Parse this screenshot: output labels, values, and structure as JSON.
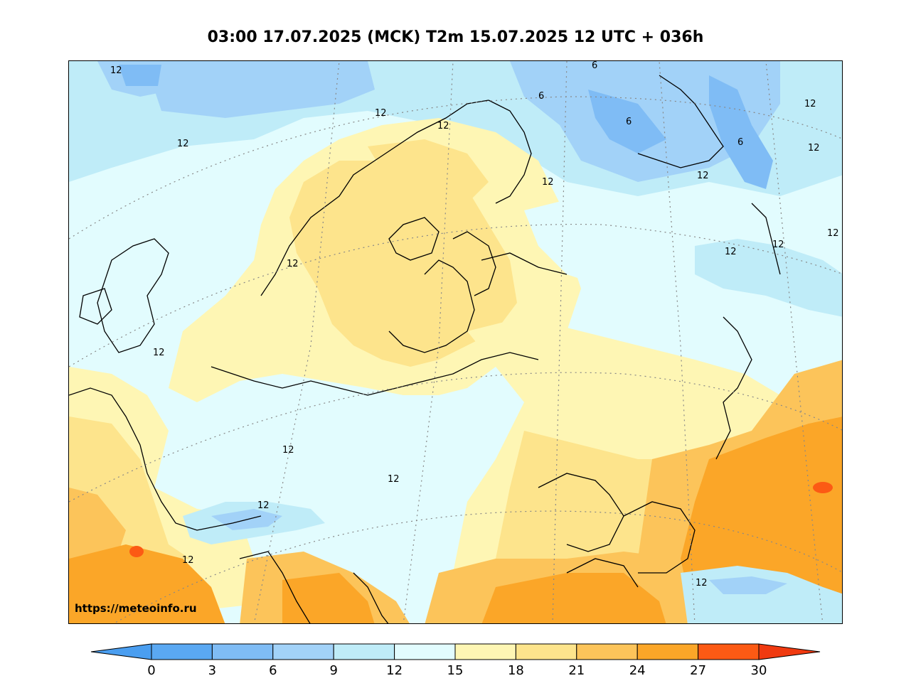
{
  "title": "03:00 17.07.2025 (MCK) T2m 15.07.2025 12 UTC + 036h",
  "watermark": "https://meteoinfo.ru",
  "colorbar": {
    "ticks": [
      "0",
      "3",
      "6",
      "9",
      "12",
      "15",
      "18",
      "21",
      "24",
      "27",
      "30"
    ],
    "colors": [
      "#4a9ef0",
      "#5aa8f2",
      "#7fbcf5",
      "#a2d2f8",
      "#bfecf8",
      "#e2fcfe",
      "#fef6b4",
      "#fde48c",
      "#fcc45a",
      "#fba628",
      "#fc5a14",
      "#f03a10"
    ]
  },
  "contour_labels": [
    {
      "text": "12",
      "key": "l1"
    },
    {
      "text": "12",
      "key": "l2"
    },
    {
      "text": "12",
      "key": "l3"
    },
    {
      "text": "12",
      "key": "l4"
    },
    {
      "text": "6",
      "key": "l5"
    },
    {
      "text": "6",
      "key": "l6"
    },
    {
      "text": "6",
      "key": "l7"
    },
    {
      "text": "6",
      "key": "l8"
    },
    {
      "text": "12",
      "key": "l9"
    },
    {
      "text": "12",
      "key": "l10"
    },
    {
      "text": "12",
      "key": "l11"
    },
    {
      "text": "12",
      "key": "l12"
    },
    {
      "text": "12",
      "key": "l13"
    },
    {
      "text": "12",
      "key": "l14"
    },
    {
      "text": "12",
      "key": "l15"
    },
    {
      "text": "12",
      "key": "l16"
    },
    {
      "text": "12",
      "key": "l17"
    },
    {
      "text": "12",
      "key": "l18"
    },
    {
      "text": "12",
      "key": "l19"
    },
    {
      "text": "12",
      "key": "l20"
    },
    {
      "text": "12",
      "key": "l21"
    },
    {
      "text": "12",
      "key": "l22"
    }
  ]
}
